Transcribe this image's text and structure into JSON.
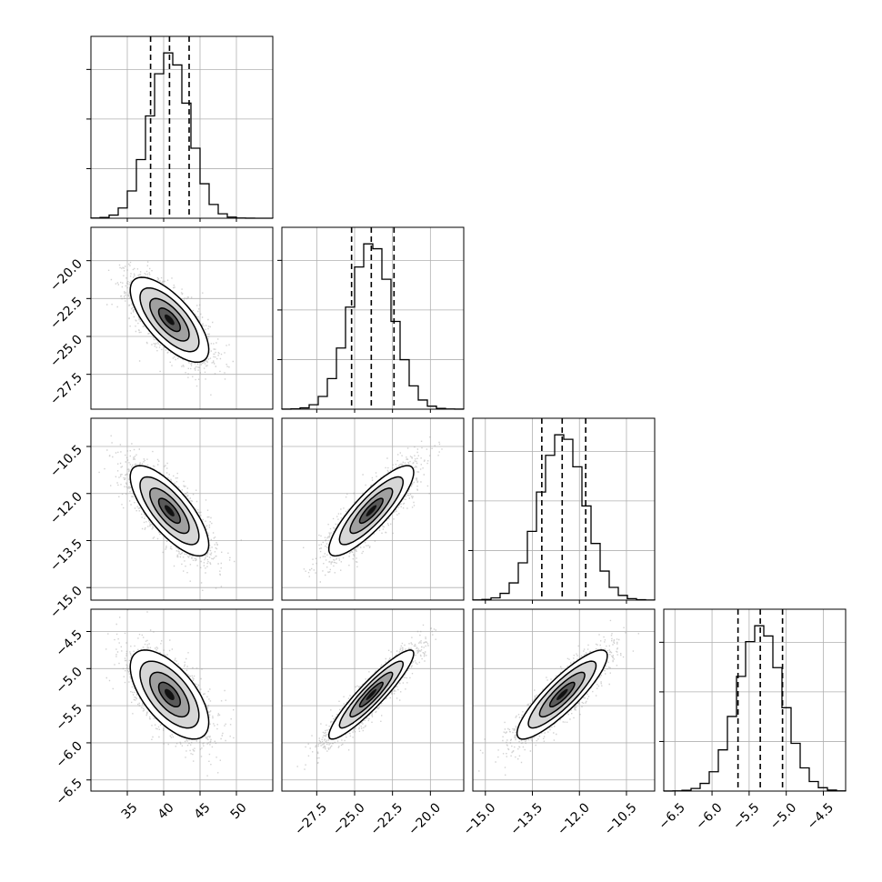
{
  "chart_data": {
    "type": "corner",
    "parameters": [
      {
        "name": "",
        "median": 40.8,
        "q16": 38.2,
        "q84": 43.5,
        "sd": 2.7,
        "range": [
          30.0,
          55.0
        ],
        "ticks": [
          "35",
          "40",
          "45",
          "50"
        ],
        "tick_values": [
          35,
          40,
          45,
          50
        ]
      },
      {
        "name": "",
        "median": -23.9,
        "q16": -25.2,
        "q84": -22.4,
        "sd": 1.4,
        "range": [
          -29.8,
          -17.8
        ],
        "ticks": [
          "−27.5",
          "−25.0",
          "−22.5",
          "−20.0"
        ],
        "tick_values": [
          -27.5,
          -25.0,
          -22.5,
          -20.0
        ]
      },
      {
        "name": "",
        "median": -12.55,
        "q16": -13.2,
        "q84": -11.8,
        "sd": 0.72,
        "range": [
          -15.4,
          -9.6
        ],
        "ticks": [
          "−15.0",
          "−13.5",
          "−12.0",
          "−10.5"
        ],
        "tick_values": [
          -15.0,
          -13.5,
          -12.0,
          -10.5
        ]
      },
      {
        "name": "",
        "median": -5.35,
        "q16": -5.65,
        "q84": -5.05,
        "sd": 0.3,
        "range": [
          -6.65,
          -4.2
        ],
        "ticks": [
          "−6.5",
          "−6.0",
          "−5.5",
          "−5.0",
          "−4.5"
        ],
        "tick_values": [
          -6.5,
          -6.0,
          -5.5,
          -5.0,
          -4.5
        ]
      }
    ],
    "correlations": {
      "1-0": -0.7,
      "2-0": -0.75,
      "2-1": 0.85,
      "3-0": -0.62,
      "3-1": 0.92,
      "3-2": 0.87
    },
    "diagonal_histogram": "1D marginal histograms with dashed lines at 16th, 50th, 84th percentiles",
    "off_diagonal": "2D density contours with scatter points",
    "grid": true,
    "title": "",
    "colors": {
      "points": "#9a9a9a",
      "contour": "#000000",
      "density_dark": "#000000",
      "quantile_line": "#000000"
    }
  }
}
